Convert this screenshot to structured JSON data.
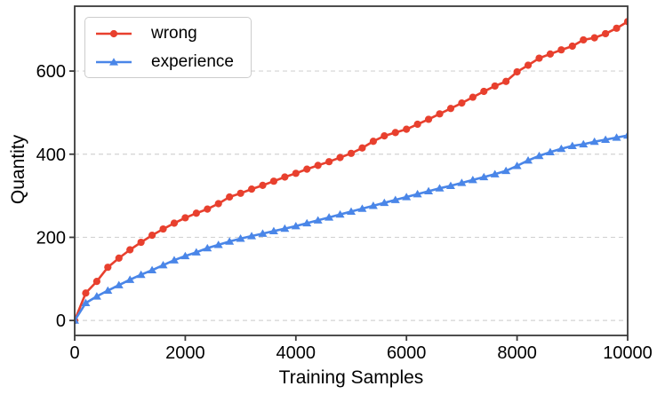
{
  "chart_data": {
    "type": "line",
    "title": "",
    "xlabel": "Training Samples",
    "ylabel": "Quantity",
    "xlim": [
      0,
      10000
    ],
    "ylim": [
      -36,
      756
    ],
    "xticks": [
      0,
      2000,
      4000,
      6000,
      8000,
      10000
    ],
    "yticks": [
      0,
      200,
      400,
      600
    ],
    "grid": {
      "axis": "y",
      "style": "dashed",
      "color": "#d3d3d3"
    },
    "legend_position": "upper left",
    "spine_color": "#3a3a3a",
    "x": [
      0,
      200,
      400,
      600,
      800,
      1000,
      1200,
      1400,
      1600,
      1800,
      2000,
      2200,
      2400,
      2600,
      2800,
      3000,
      3200,
      3400,
      3600,
      3800,
      4000,
      4200,
      4400,
      4600,
      4800,
      5000,
      5200,
      5400,
      5600,
      5800,
      6000,
      6200,
      6400,
      6600,
      6800,
      7000,
      7200,
      7400,
      7600,
      7800,
      8000,
      8200,
      8400,
      8600,
      8800,
      9000,
      9200,
      9400,
      9600,
      9800,
      10000
    ],
    "series": [
      {
        "name": "wrong",
        "color": "#e8402e",
        "marker": "circle",
        "values": [
          0,
          66,
          94,
          128,
          150,
          170,
          188,
          205,
          220,
          234,
          247,
          258,
          268,
          281,
          297,
          306,
          316,
          325,
          335,
          345,
          354,
          364,
          373,
          382,
          392,
          402,
          415,
          431,
          444,
          452,
          460,
          472,
          484,
          497,
          510,
          523,
          537,
          551,
          564,
          575,
          598,
          614,
          631,
          641,
          651,
          660,
          675,
          680,
          690,
          703,
          719
        ]
      },
      {
        "name": "experience",
        "color": "#4a86e8",
        "marker": "triangle-up",
        "values": [
          0,
          42,
          58,
          72,
          85,
          98,
          110,
          121,
          133,
          145,
          155,
          164,
          174,
          182,
          190,
          197,
          203,
          209,
          215,
          221,
          227,
          234,
          241,
          248,
          255,
          262,
          269,
          276,
          283,
          290,
          297,
          304,
          311,
          318,
          324,
          331,
          338,
          345,
          352,
          360,
          372,
          385,
          396,
          405,
          413,
          420,
          424,
          430,
          435,
          440,
          445
        ]
      }
    ]
  }
}
